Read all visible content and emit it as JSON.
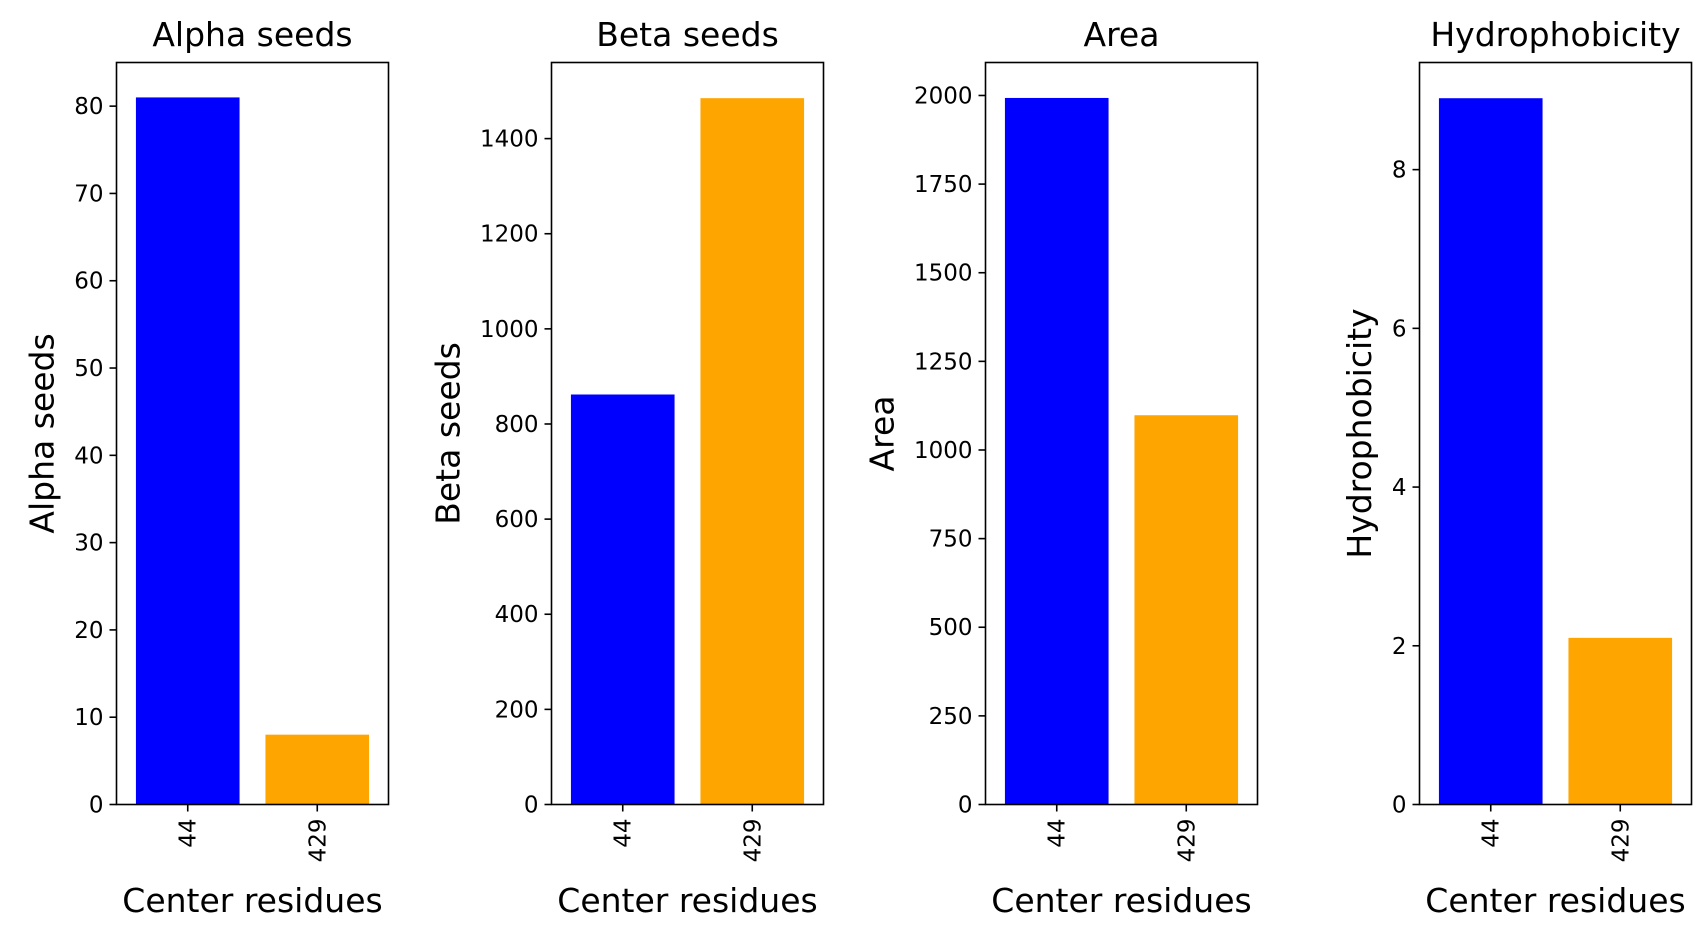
{
  "chart_data": [
    {
      "type": "bar",
      "title": "Alpha seeds",
      "xlabel": "Center residues",
      "ylabel": "Alpha seeds",
      "categories": [
        "44",
        "429"
      ],
      "values": [
        81,
        8
      ],
      "colors": [
        "#0000ff",
        "#ffa500"
      ],
      "ylim": [
        0,
        85
      ],
      "yticks": [
        0,
        10,
        20,
        30,
        40,
        50,
        60,
        70,
        80
      ],
      "ytick_labels": [
        "0",
        "10",
        "20",
        "30",
        "40",
        "50",
        "60",
        "70",
        "80"
      ],
      "grid": false
    },
    {
      "type": "bar",
      "title": "Beta seeds",
      "xlabel": "Center residues",
      "ylabel": "Beta seeds",
      "categories": [
        "44",
        "429"
      ],
      "values": [
        862,
        1485
      ],
      "colors": [
        "#0000ff",
        "#ffa500"
      ],
      "ylim": [
        0,
        1560
      ],
      "yticks": [
        0,
        200,
        400,
        600,
        800,
        1000,
        1200,
        1400
      ],
      "ytick_labels": [
        "0",
        "200",
        "400",
        "600",
        "800",
        "1000",
        "1200",
        "1400"
      ],
      "grid": false
    },
    {
      "type": "bar",
      "title": "Area",
      "xlabel": "Center residues",
      "ylabel": "Area",
      "categories": [
        "44",
        "429"
      ],
      "values": [
        1993,
        1098
      ],
      "colors": [
        "#0000ff",
        "#ffa500"
      ],
      "ylim": [
        0,
        2093
      ],
      "yticks": [
        0,
        250,
        500,
        750,
        1000,
        1250,
        1500,
        1750,
        2000
      ],
      "ytick_labels": [
        "0",
        "250",
        "500",
        "750",
        "1000",
        "1250",
        "1500",
        "1750",
        "2000"
      ],
      "grid": false
    },
    {
      "type": "bar",
      "title": "Hydrophobicity",
      "xlabel": "Center residues",
      "ylabel": "Hydrophobicity",
      "categories": [
        "44",
        "429"
      ],
      "values": [
        8.9,
        2.1
      ],
      "colors": [
        "#0000ff",
        "#ffa500"
      ],
      "ylim": [
        0,
        9.35
      ],
      "yticks": [
        0,
        2,
        4,
        6,
        8
      ],
      "ytick_labels": [
        "0",
        "2",
        "4",
        "6",
        "8"
      ],
      "grid": false
    }
  ]
}
